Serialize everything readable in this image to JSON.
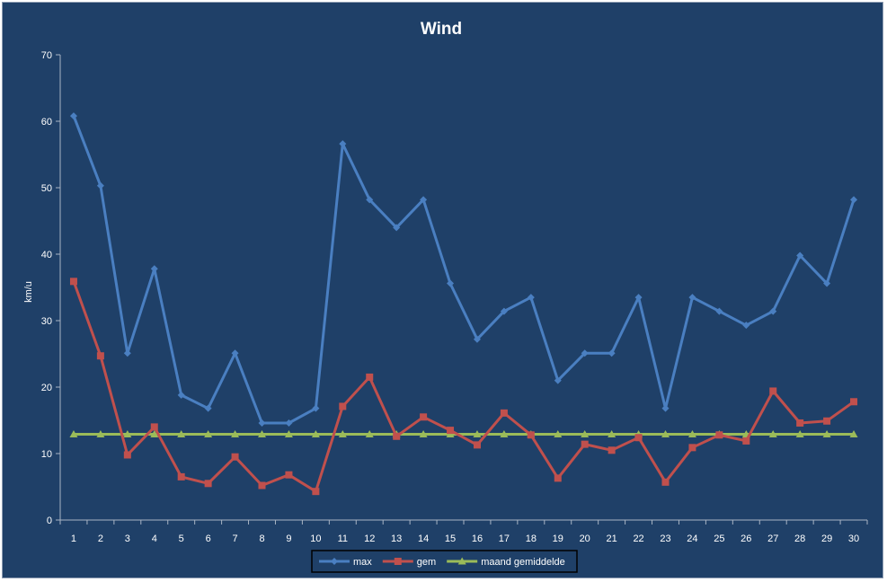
{
  "chart_data": {
    "type": "line",
    "title": "Wind",
    "ylabel": "km/u",
    "xlabel": "",
    "ylim": [
      0,
      70
    ],
    "yticks": [
      0,
      10,
      20,
      30,
      40,
      50,
      60,
      70
    ],
    "categories": [
      "1",
      "2",
      "3",
      "4",
      "5",
      "6",
      "7",
      "8",
      "9",
      "10",
      "11",
      "12",
      "13",
      "14",
      "15",
      "16",
      "17",
      "18",
      "19",
      "20",
      "21",
      "22",
      "23",
      "24",
      "25",
      "26",
      "27",
      "28",
      "29",
      "30"
    ],
    "grid": false,
    "legend_position": "bottom",
    "series": [
      {
        "name": "max",
        "color": "#4a7fc1",
        "marker": "diamond",
        "values": [
          60.8,
          50.3,
          25.1,
          37.8,
          18.8,
          16.8,
          25.1,
          14.6,
          14.6,
          16.8,
          56.6,
          48.2,
          44.0,
          48.2,
          35.6,
          27.2,
          31.4,
          33.5,
          21.0,
          25.1,
          25.1,
          33.5,
          16.8,
          33.5,
          31.4,
          29.3,
          31.4,
          39.8,
          35.6,
          48.2
        ]
      },
      {
        "name": "gem",
        "color": "#c0504d",
        "marker": "square",
        "values": [
          35.9,
          24.7,
          9.8,
          14.0,
          6.5,
          5.5,
          9.5,
          5.2,
          6.8,
          4.3,
          17.1,
          21.5,
          12.6,
          15.5,
          13.5,
          11.3,
          16.1,
          12.8,
          6.3,
          11.4,
          10.5,
          12.4,
          5.7,
          10.9,
          12.8,
          11.9,
          19.4,
          14.6,
          14.9,
          17.8
        ]
      },
      {
        "name": "maand gemiddelde",
        "color": "#9bbb59",
        "marker": "triangle",
        "values": [
          12.9,
          12.9,
          12.9,
          12.9,
          12.9,
          12.9,
          12.9,
          12.9,
          12.9,
          12.9,
          12.9,
          12.9,
          12.9,
          12.9,
          12.9,
          12.9,
          12.9,
          12.9,
          12.9,
          12.9,
          12.9,
          12.9,
          12.9,
          12.9,
          12.9,
          12.9,
          12.9,
          12.9,
          12.9,
          12.9
        ]
      }
    ]
  }
}
